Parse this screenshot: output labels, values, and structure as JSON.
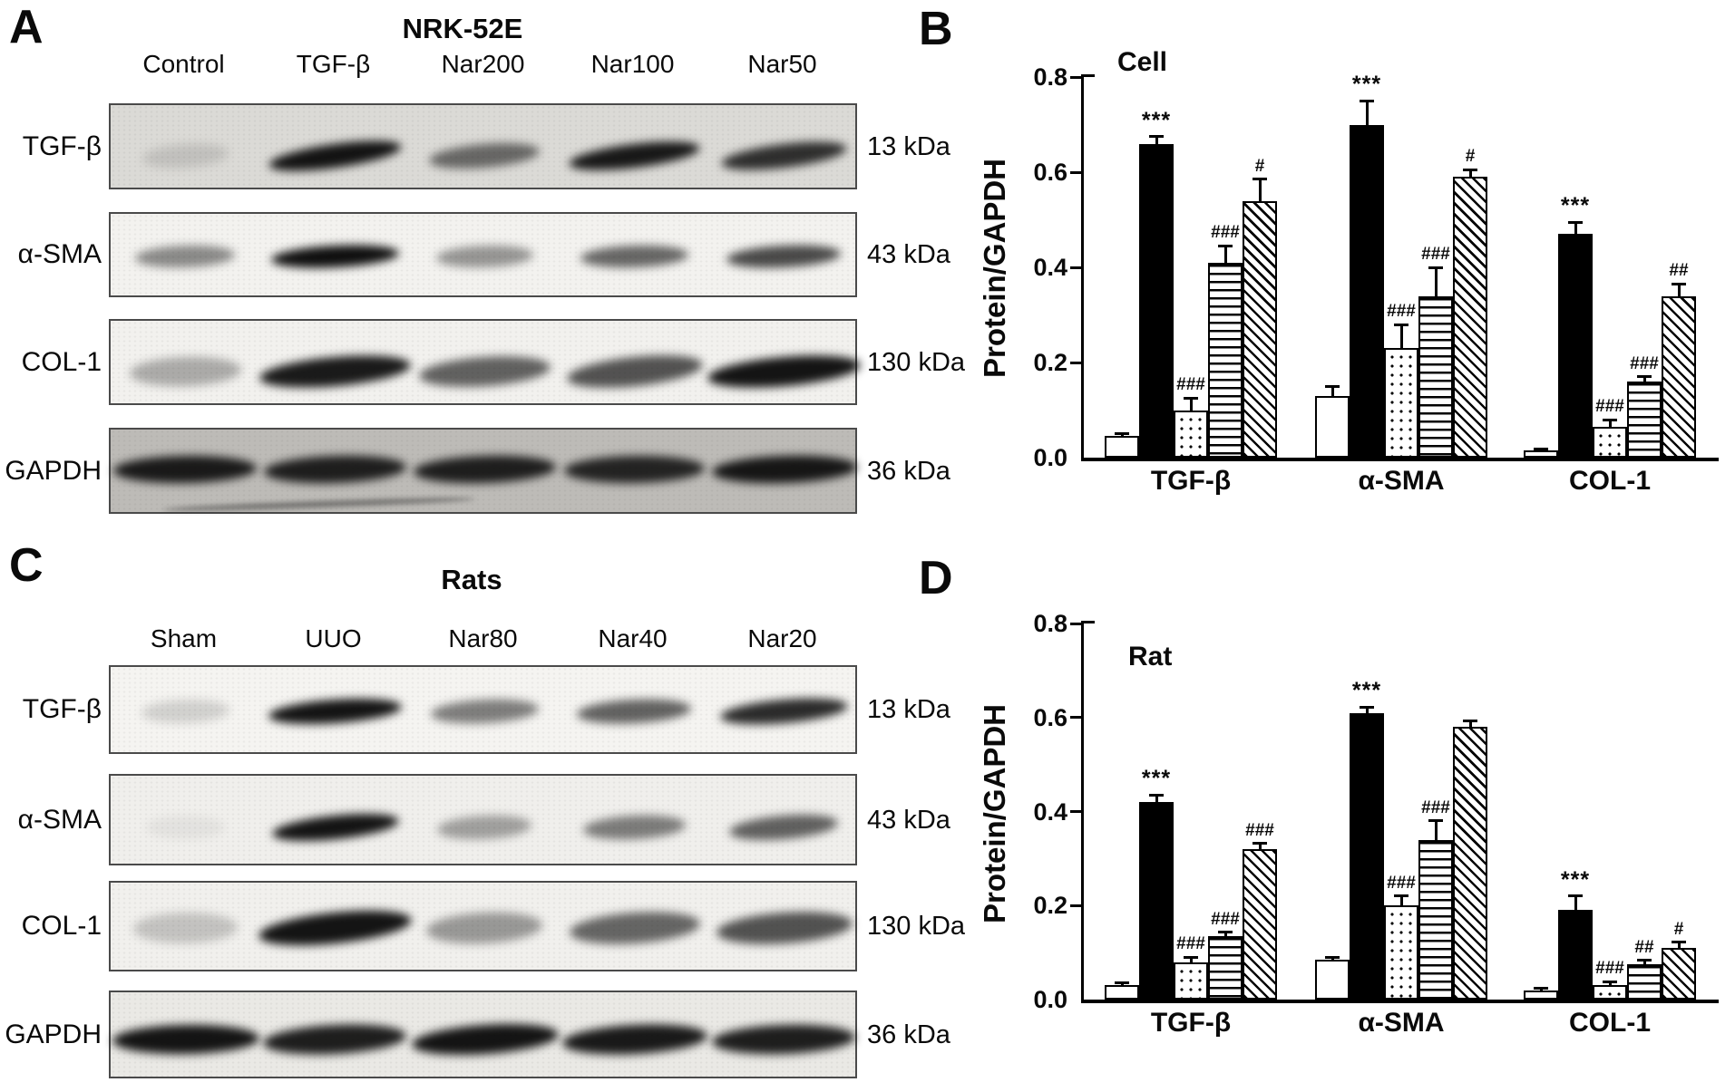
{
  "panels": {
    "A": {
      "letter": "A",
      "title": "NRK-52E",
      "lane_labels": [
        "Control",
        "TGF-β",
        "Nar200",
        "Nar100",
        "Nar50"
      ],
      "rows": [
        {
          "label": "TGF-β",
          "kda": "13 kDa",
          "band_intensities": [
            0.12,
            0.95,
            0.55,
            0.92,
            0.82
          ]
        },
        {
          "label": "α-SMA",
          "kda": "43 kDa",
          "band_intensities": [
            0.45,
            0.97,
            0.4,
            0.6,
            0.72
          ]
        },
        {
          "label": "COL-1",
          "kda": "130 kDa",
          "band_intensities": [
            0.3,
            0.92,
            0.62,
            0.68,
            0.95
          ]
        },
        {
          "label": "GAPDH",
          "kda": "36 kDa",
          "band_intensities": [
            0.9,
            0.88,
            0.88,
            0.85,
            0.92
          ]
        }
      ]
    },
    "B": {
      "letter": "B"
    },
    "C": {
      "letter": "C",
      "title": "Rats",
      "lane_labels": [
        "Sham",
        "UUO",
        "Nar80",
        "Nar40",
        "Nar20"
      ],
      "rows": [
        {
          "label": "TGF-β",
          "kda": "13 kDa",
          "band_intensities": [
            0.15,
            0.95,
            0.5,
            0.62,
            0.85
          ]
        },
        {
          "label": "α-SMA",
          "kda": "43 kDa",
          "band_intensities": [
            0.05,
            0.95,
            0.35,
            0.5,
            0.62
          ]
        },
        {
          "label": "COL-1",
          "kda": "130 kDa",
          "band_intensities": [
            0.2,
            0.95,
            0.38,
            0.6,
            0.68
          ]
        },
        {
          "label": "GAPDH",
          "kda": "36 kDa",
          "band_intensities": [
            0.95,
            0.9,
            0.95,
            0.92,
            0.9
          ]
        }
      ]
    },
    "D": {
      "letter": "D"
    }
  },
  "chart_data": [
    {
      "panel": "B",
      "type": "bar",
      "title": "Cell",
      "ylabel": "Protein/GAPDH",
      "ylim": [
        0,
        0.8
      ],
      "yticks": [
        "0.0",
        "0.2",
        "0.4",
        "0.6",
        "0.8"
      ],
      "grid": false,
      "legend": "none",
      "categories": [
        "TGF-β",
        "α-SMA",
        "COL-1"
      ],
      "series": [
        {
          "name": "open",
          "pattern": "open",
          "values": [
            0.045,
            0.13,
            0.015
          ],
          "errors": [
            0.005,
            0.02,
            0.004
          ],
          "sig": [
            "",
            "",
            ""
          ]
        },
        {
          "name": "solid-black",
          "pattern": "solid",
          "values": [
            0.66,
            0.7,
            0.47
          ],
          "errors": [
            0.015,
            0.05,
            0.025
          ],
          "sig": [
            "***",
            "***",
            "***"
          ]
        },
        {
          "name": "dotted",
          "pattern": "dots",
          "values": [
            0.1,
            0.23,
            0.065
          ],
          "errors": [
            0.025,
            0.05,
            0.015
          ],
          "sig": [
            "###",
            "###",
            "###"
          ]
        },
        {
          "name": "horizontal-hatch",
          "pattern": "hlines",
          "values": [
            0.41,
            0.34,
            0.16
          ],
          "errors": [
            0.035,
            0.06,
            0.01
          ],
          "sig": [
            "###",
            "###",
            "###"
          ]
        },
        {
          "name": "diagonal-hatch",
          "pattern": "dlines",
          "values": [
            0.54,
            0.59,
            0.34
          ],
          "errors": [
            0.045,
            0.015,
            0.025
          ],
          "sig": [
            "#",
            "#",
            "##"
          ]
        }
      ]
    },
    {
      "panel": "D",
      "type": "bar",
      "title": "Rat",
      "ylabel": "Protein/GAPDH",
      "ylim": [
        0,
        0.8
      ],
      "yticks": [
        "0.0",
        "0.2",
        "0.4",
        "0.6",
        "0.8"
      ],
      "grid": false,
      "legend": "none",
      "categories": [
        "TGF-β",
        "α-SMA",
        "COL-1"
      ],
      "series": [
        {
          "name": "open",
          "pattern": "open",
          "values": [
            0.03,
            0.085,
            0.02
          ],
          "errors": [
            0.005,
            0.004,
            0.005
          ],
          "sig": [
            "",
            "",
            ""
          ]
        },
        {
          "name": "solid-black",
          "pattern": "solid",
          "values": [
            0.42,
            0.61,
            0.19
          ],
          "errors": [
            0.015,
            0.012,
            0.03
          ],
          "sig": [
            "***",
            "***",
            "***"
          ]
        },
        {
          "name": "dotted",
          "pattern": "dots",
          "values": [
            0.08,
            0.2,
            0.03
          ],
          "errors": [
            0.01,
            0.02,
            0.008
          ],
          "sig": [
            "###",
            "###",
            "###"
          ]
        },
        {
          "name": "horizontal-hatch",
          "pattern": "hlines",
          "values": [
            0.135,
            0.34,
            0.075
          ],
          "errors": [
            0.008,
            0.04,
            0.008
          ],
          "sig": [
            "###",
            "###",
            "##"
          ]
        },
        {
          "name": "diagonal-hatch",
          "pattern": "dlines",
          "values": [
            0.32,
            0.58,
            0.11
          ],
          "errors": [
            0.012,
            0.012,
            0.012
          ],
          "sig": [
            "###",
            "",
            "#"
          ]
        }
      ]
    }
  ]
}
